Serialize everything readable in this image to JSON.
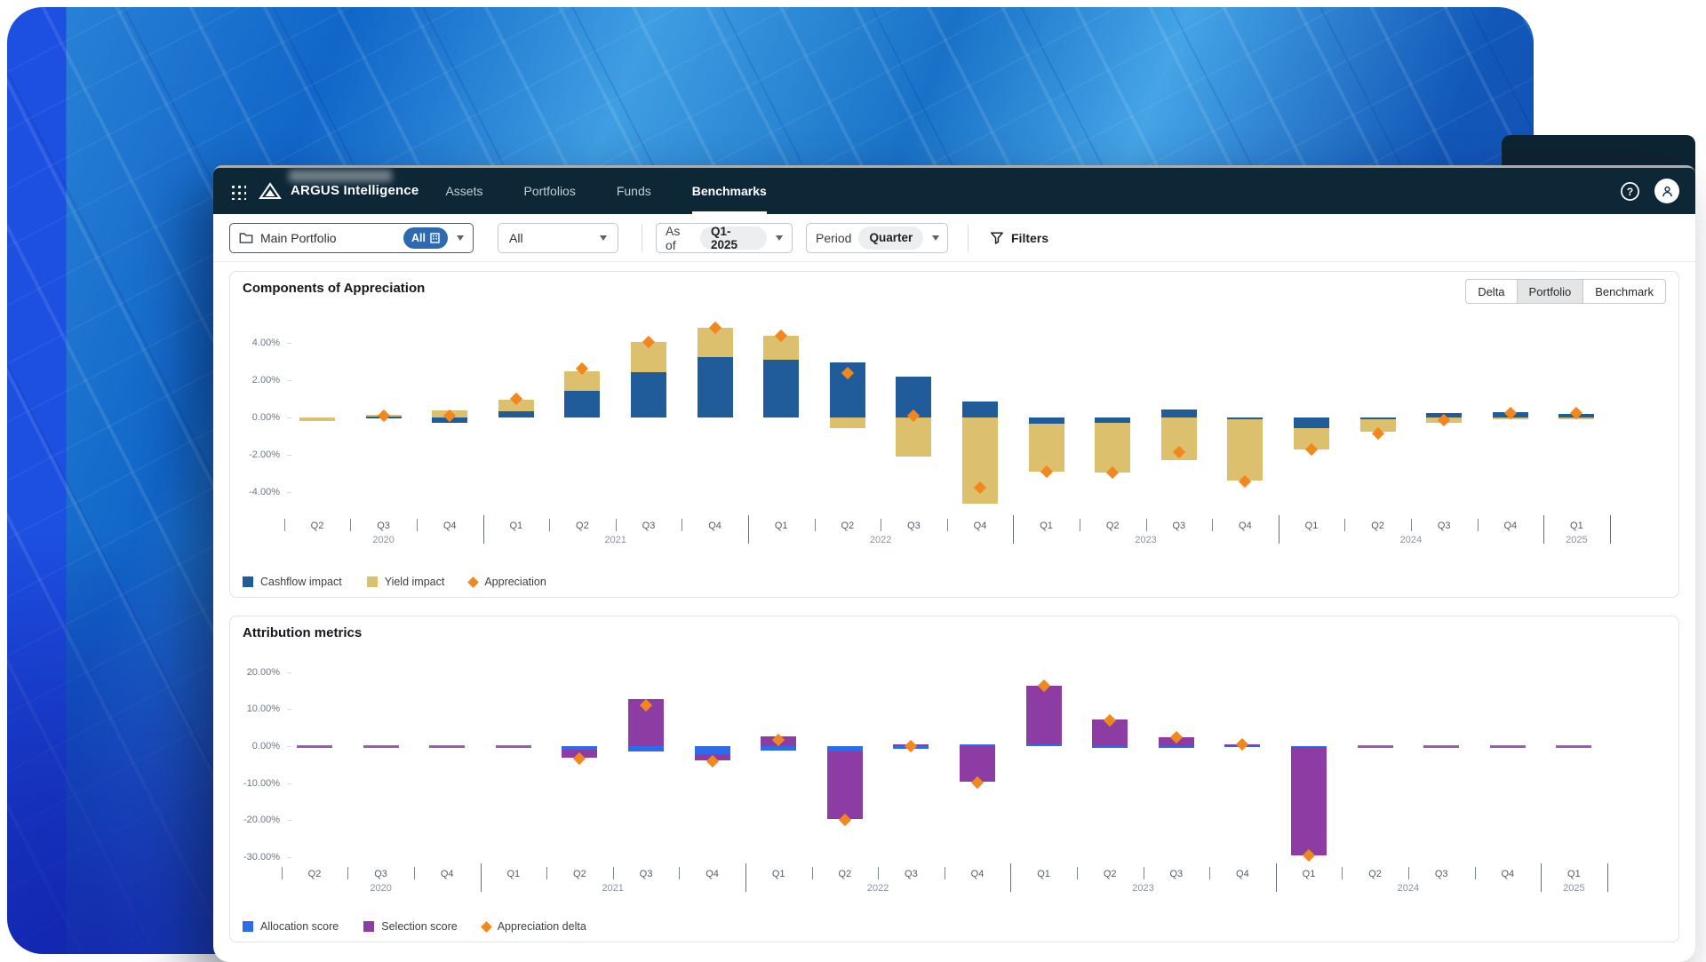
{
  "window": {
    "brand": "ARGUS Intelligence",
    "nav_tabs": [
      {
        "label": "Assets",
        "active": false
      },
      {
        "label": "Portfolios",
        "active": false
      },
      {
        "label": "Funds",
        "active": false
      },
      {
        "label": "Benchmarks",
        "active": true
      }
    ],
    "header_icons": [
      "grid-icon",
      "mountain-logo-icon",
      "help-icon",
      "avatar"
    ]
  },
  "filter_bar": {
    "portfolio_selector": {
      "icon": "folder-icon",
      "label": "Main Portfolio",
      "badge": "All",
      "badge_icon": "building-icon"
    },
    "entity_selector": {
      "value": "All"
    },
    "as_of": {
      "label": "As of",
      "value": "Q1-2025"
    },
    "period": {
      "label": "Period",
      "value": "Quarter"
    },
    "filters": {
      "icon": "funnel-icon",
      "label": "Filters"
    }
  },
  "view_toggle": {
    "options": [
      "Delta",
      "Portfolio",
      "Benchmark"
    ],
    "selected": "Portfolio"
  },
  "colors": {
    "navbar": "#0e2737",
    "portfolio_badge": "#2d6ab0",
    "cashflow_impact": "#1f5c99",
    "yield_impact": "#dcc06e",
    "appreciation": "#f2871d",
    "allocation_score": "#2e6bea",
    "selection_score": "#8d3ca3"
  },
  "chart_data": [
    {
      "type": "bar",
      "title": "Components of Appreciation",
      "stacked": true,
      "grid": true,
      "legend_position": "bottom-left",
      "ylim": [
        -5,
        5
      ],
      "yticks": [
        {
          "value": 4,
          "label": "4.00%"
        },
        {
          "value": 2,
          "label": "2.00%"
        },
        {
          "value": 0,
          "label": "0.00%"
        },
        {
          "value": -2,
          "label": "-2.00%"
        },
        {
          "value": -4,
          "label": "-4.00%"
        }
      ],
      "categories": [
        {
          "quarter": "Q2",
          "year": "2020"
        },
        {
          "quarter": "Q3",
          "year": "2020"
        },
        {
          "quarter": "Q4",
          "year": "2020"
        },
        {
          "quarter": "Q1",
          "year": "2021"
        },
        {
          "quarter": "Q2",
          "year": "2021"
        },
        {
          "quarter": "Q3",
          "year": "2021"
        },
        {
          "quarter": "Q4",
          "year": "2021"
        },
        {
          "quarter": "Q1",
          "year": "2022"
        },
        {
          "quarter": "Q2",
          "year": "2022"
        },
        {
          "quarter": "Q3",
          "year": "2022"
        },
        {
          "quarter": "Q4",
          "year": "2022"
        },
        {
          "quarter": "Q1",
          "year": "2023"
        },
        {
          "quarter": "Q2",
          "year": "2023"
        },
        {
          "quarter": "Q3",
          "year": "2023"
        },
        {
          "quarter": "Q4",
          "year": "2023"
        },
        {
          "quarter": "Q1",
          "year": "2024"
        },
        {
          "quarter": "Q2",
          "year": "2024"
        },
        {
          "quarter": "Q3",
          "year": "2024"
        },
        {
          "quarter": "Q4",
          "year": "2024"
        },
        {
          "quarter": "Q1",
          "year": "2025"
        }
      ],
      "series": [
        {
          "name": "Cashflow impact",
          "type": "bar",
          "color": "#1f5c99",
          "values": [
            0,
            0.05,
            -0.3,
            0.35,
            1.45,
            2.45,
            3.25,
            3.1,
            2.95,
            2.2,
            0.85,
            -0.35,
            -0.3,
            0.45,
            -0.1,
            -0.55,
            -0.1,
            0.22,
            0.3,
            0.18
          ]
        },
        {
          "name": "Yield impact",
          "type": "bar",
          "color": "#dcc06e",
          "values": [
            -0.18,
            0.08,
            0.4,
            0.6,
            1.05,
            1.6,
            1.55,
            1.3,
            -0.55,
            -2.1,
            -4.6,
            -2.55,
            -2.65,
            -2.3,
            -3.3,
            -1.15,
            -0.65,
            -0.3,
            -0.07,
            -0.05
          ]
        },
        {
          "name": "Appreciation",
          "type": "scatter",
          "marker": "diamond",
          "color": "#f2871d",
          "values": [
            null,
            0.1,
            0.1,
            1.0,
            2.6,
            4.05,
            4.8,
            4.4,
            2.4,
            0.1,
            -3.75,
            -2.9,
            -2.95,
            -1.85,
            -3.45,
            -1.7,
            -0.85,
            -0.12,
            0.25,
            0.25
          ]
        }
      ]
    },
    {
      "type": "bar",
      "title": "Attribution metrics",
      "stacked": true,
      "grid": true,
      "legend_position": "bottom-left",
      "ylim": [
        -32,
        22
      ],
      "yticks": [
        {
          "value": 20,
          "label": "20.00%"
        },
        {
          "value": 10,
          "label": "10.00%"
        },
        {
          "value": 0,
          "label": "0.00%"
        },
        {
          "value": -10,
          "label": "-10.00%"
        },
        {
          "value": -20,
          "label": "-20.00%"
        },
        {
          "value": -30,
          "label": "-30.00%"
        }
      ],
      "categories": [
        {
          "quarter": "Q2",
          "year": "2020"
        },
        {
          "quarter": "Q3",
          "year": "2020"
        },
        {
          "quarter": "Q4",
          "year": "2020"
        },
        {
          "quarter": "Q1",
          "year": "2021"
        },
        {
          "quarter": "Q2",
          "year": "2021"
        },
        {
          "quarter": "Q3",
          "year": "2021"
        },
        {
          "quarter": "Q4",
          "year": "2021"
        },
        {
          "quarter": "Q1",
          "year": "2022"
        },
        {
          "quarter": "Q2",
          "year": "2022"
        },
        {
          "quarter": "Q3",
          "year": "2022"
        },
        {
          "quarter": "Q4",
          "year": "2022"
        },
        {
          "quarter": "Q1",
          "year": "2023"
        },
        {
          "quarter": "Q2",
          "year": "2023"
        },
        {
          "quarter": "Q3",
          "year": "2023"
        },
        {
          "quarter": "Q4",
          "year": "2023"
        },
        {
          "quarter": "Q1",
          "year": "2024"
        },
        {
          "quarter": "Q2",
          "year": "2024"
        },
        {
          "quarter": "Q3",
          "year": "2024"
        },
        {
          "quarter": "Q4",
          "year": "2024"
        },
        {
          "quarter": "Q1",
          "year": "2025"
        }
      ],
      "series": [
        {
          "name": "Allocation score",
          "type": "bar",
          "color": "#2e6bea",
          "values": [
            0,
            0,
            0,
            0,
            -0.9,
            -1.4,
            -2.1,
            -1.3,
            -1.5,
            -0.7,
            0.4,
            0.4,
            -0.4,
            -0.2,
            0.2,
            -0.3,
            0,
            0,
            0,
            0
          ]
        },
        {
          "name": "Selection score",
          "type": "bar",
          "color": "#8d3ca3",
          "values": [
            0,
            0,
            0,
            0,
            -2.3,
            12.6,
            -1.7,
            2.6,
            -18.2,
            0.4,
            -9.6,
            15.8,
            7.2,
            2.4,
            0.2,
            -29.2,
            0,
            0,
            0,
            0
          ]
        },
        {
          "name": "Appreciation delta",
          "type": "scatter",
          "marker": "diamond",
          "color": "#f2871d",
          "values": [
            null,
            null,
            null,
            null,
            -3.4,
            11.0,
            -4.1,
            1.6,
            -20.0,
            -0.1,
            -9.8,
            16.2,
            6.9,
            2.5,
            0.4,
            -29.6,
            null,
            null,
            null,
            null
          ]
        }
      ]
    }
  ]
}
